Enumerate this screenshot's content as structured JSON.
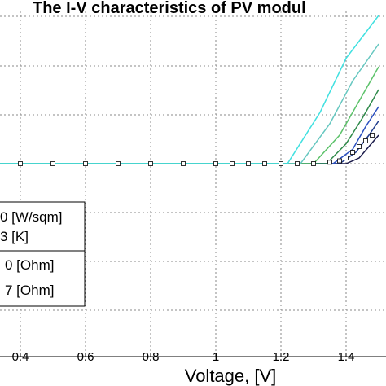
{
  "chart_data": {
    "type": "line",
    "title": "The I-V characteristics of PV modul",
    "xlabel": "Voltage, [V]",
    "ylabel": "",
    "xlim": [
      0.3,
      1.5
    ],
    "x_ticks": [
      0.4,
      0.6,
      0.8,
      1,
      1.2,
      1.4
    ],
    "x_tick_labels": [
      "0.4",
      "0.6",
      "0.8",
      "1",
      "1.2",
      "1.4"
    ],
    "grid": true,
    "legend_lines": [
      "0 [W/sqm]",
      "3 [K]",
      "0 [Ohm]",
      "7 [Ohm]"
    ],
    "legend_placement": "left, partially cropped",
    "markers": {
      "symbol": "square",
      "x": [
        0.4,
        0.5,
        0.6,
        0.7,
        0.8,
        0.9,
        1.0,
        1.05,
        1.1,
        1.15,
        1.2,
        1.25,
        1.3,
        1.35,
        1.38,
        1.4,
        1.42,
        1.44,
        1.46,
        1.48
      ],
      "y": [
        1.0,
        1.0,
        1.0,
        1.0,
        1.0,
        1.0,
        1.0,
        1.0,
        1.0,
        1.0,
        1.0,
        1.0,
        1.0,
        0.995,
        0.99,
        0.98,
        0.96,
        0.94,
        0.92,
        0.9
      ]
    },
    "series": [
      {
        "color": "#1a1a4a",
        "x": [
          0.3,
          1.4,
          1.44,
          1.47,
          1.5
        ],
        "y": [
          1.0,
          1.0,
          0.98,
          0.94,
          0.9
        ]
      },
      {
        "color": "#1f3b8c",
        "x": [
          0.3,
          1.38,
          1.43,
          1.47,
          1.5
        ],
        "y": [
          1.0,
          1.0,
          0.96,
          0.9,
          0.85
        ]
      },
      {
        "color": "#2a4fbf",
        "x": [
          0.3,
          1.36,
          1.42,
          1.46,
          1.5
        ],
        "y": [
          1.0,
          1.0,
          0.95,
          0.87,
          0.8
        ]
      },
      {
        "color": "#2f8a4a",
        "x": [
          0.3,
          1.34,
          1.4,
          1.45,
          1.5
        ],
        "y": [
          1.0,
          1.0,
          0.93,
          0.84,
          0.74
        ]
      },
      {
        "color": "#5cc26a",
        "x": [
          0.3,
          1.3,
          1.38,
          1.44,
          1.5
        ],
        "y": [
          1.0,
          1.0,
          0.9,
          0.78,
          0.66
        ]
      },
      {
        "color": "#66c7c0",
        "x": [
          0.3,
          1.26,
          1.35,
          1.42,
          1.5
        ],
        "y": [
          1.0,
          1.0,
          0.86,
          0.71,
          0.58
        ]
      },
      {
        "color": "#40e0e0",
        "x": [
          0.3,
          1.22,
          1.32,
          1.4,
          1.5
        ],
        "y": [
          1.0,
          1.0,
          0.82,
          0.63,
          0.48
        ]
      }
    ]
  }
}
